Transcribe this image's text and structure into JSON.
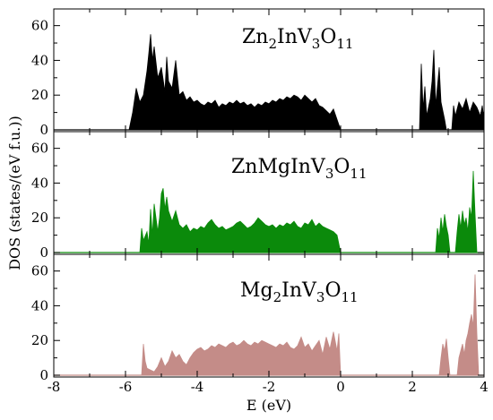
{
  "chart_data": {
    "type": "area",
    "xlabel": "E (eV)",
    "ylabel": "DOS (states/(eV f.u.))",
    "xlim": [
      -8,
      4
    ],
    "ylim": [
      0,
      66
    ],
    "x_ticks": [
      -8,
      -6,
      -4,
      -2,
      0,
      2,
      4
    ],
    "x_tick_labels": [
      "-8",
      "-6",
      "-4",
      "-2",
      "0",
      "2",
      "4"
    ],
    "y_ticks": [
      0,
      20,
      40,
      60
    ],
    "y_tick_labels": [
      "0",
      "20",
      "40",
      "60"
    ],
    "grid": false,
    "panels": [
      {
        "label_parts": [
          {
            "text": "Zn",
            "sub": false
          },
          {
            "text": "2",
            "sub": true
          },
          {
            "text": "InV",
            "sub": false
          },
          {
            "text": "3",
            "sub": true
          },
          {
            "text": "O",
            "sub": false
          },
          {
            "text": "11",
            "sub": true
          }
        ],
        "color": "#000000",
        "series": [
          {
            "x": -5.9,
            "y": 0
          },
          {
            "x": -5.8,
            "y": 10
          },
          {
            "x": -5.7,
            "y": 24
          },
          {
            "x": -5.6,
            "y": 16
          },
          {
            "x": -5.5,
            "y": 20
          },
          {
            "x": -5.4,
            "y": 34
          },
          {
            "x": -5.35,
            "y": 44
          },
          {
            "x": -5.3,
            "y": 55
          },
          {
            "x": -5.25,
            "y": 40
          },
          {
            "x": -5.2,
            "y": 48
          },
          {
            "x": -5.1,
            "y": 30
          },
          {
            "x": -5.0,
            "y": 36
          },
          {
            "x": -4.9,
            "y": 22
          },
          {
            "x": -4.85,
            "y": 42
          },
          {
            "x": -4.8,
            "y": 28
          },
          {
            "x": -4.7,
            "y": 24
          },
          {
            "x": -4.6,
            "y": 40
          },
          {
            "x": -4.5,
            "y": 20
          },
          {
            "x": -4.4,
            "y": 22
          },
          {
            "x": -4.3,
            "y": 17
          },
          {
            "x": -4.2,
            "y": 19
          },
          {
            "x": -4.1,
            "y": 16
          },
          {
            "x": -4.0,
            "y": 17
          },
          {
            "x": -3.9,
            "y": 15
          },
          {
            "x": -3.8,
            "y": 14
          },
          {
            "x": -3.7,
            "y": 16
          },
          {
            "x": -3.6,
            "y": 15
          },
          {
            "x": -3.5,
            "y": 17
          },
          {
            "x": -3.4,
            "y": 13
          },
          {
            "x": -3.3,
            "y": 15
          },
          {
            "x": -3.2,
            "y": 14
          },
          {
            "x": -3.1,
            "y": 16
          },
          {
            "x": -3.0,
            "y": 15
          },
          {
            "x": -2.9,
            "y": 17
          },
          {
            "x": -2.8,
            "y": 15
          },
          {
            "x": -2.7,
            "y": 16
          },
          {
            "x": -2.6,
            "y": 14
          },
          {
            "x": -2.5,
            "y": 15
          },
          {
            "x": -2.4,
            "y": 13
          },
          {
            "x": -2.3,
            "y": 15
          },
          {
            "x": -2.2,
            "y": 14
          },
          {
            "x": -2.1,
            "y": 16
          },
          {
            "x": -2.0,
            "y": 15
          },
          {
            "x": -1.9,
            "y": 17
          },
          {
            "x": -1.8,
            "y": 16
          },
          {
            "x": -1.7,
            "y": 18
          },
          {
            "x": -1.6,
            "y": 17
          },
          {
            "x": -1.5,
            "y": 19
          },
          {
            "x": -1.4,
            "y": 18
          },
          {
            "x": -1.3,
            "y": 20
          },
          {
            "x": -1.2,
            "y": 19
          },
          {
            "x": -1.1,
            "y": 17
          },
          {
            "x": -1.0,
            "y": 20
          },
          {
            "x": -0.9,
            "y": 18
          },
          {
            "x": -0.8,
            "y": 16
          },
          {
            "x": -0.7,
            "y": 18
          },
          {
            "x": -0.6,
            "y": 14
          },
          {
            "x": -0.5,
            "y": 13
          },
          {
            "x": -0.4,
            "y": 11
          },
          {
            "x": -0.3,
            "y": 9
          },
          {
            "x": -0.2,
            "y": 12
          },
          {
            "x": -0.1,
            "y": 6
          },
          {
            "x": 0.0,
            "y": 0
          },
          {
            "x": 2.2,
            "y": 0
          },
          {
            "x": 2.25,
            "y": 38
          },
          {
            "x": 2.3,
            "y": 12
          },
          {
            "x": 2.35,
            "y": 25
          },
          {
            "x": 2.4,
            "y": 8
          },
          {
            "x": 2.5,
            "y": 18
          },
          {
            "x": 2.55,
            "y": 28
          },
          {
            "x": 2.6,
            "y": 46
          },
          {
            "x": 2.65,
            "y": 14
          },
          {
            "x": 2.75,
            "y": 36
          },
          {
            "x": 2.8,
            "y": 16
          },
          {
            "x": 2.9,
            "y": 6
          },
          {
            "x": 2.95,
            "y": 0
          },
          {
            "x": 3.1,
            "y": 0
          },
          {
            "x": 3.15,
            "y": 14
          },
          {
            "x": 3.2,
            "y": 8
          },
          {
            "x": 3.3,
            "y": 16
          },
          {
            "x": 3.4,
            "y": 12
          },
          {
            "x": 3.5,
            "y": 18
          },
          {
            "x": 3.6,
            "y": 10
          },
          {
            "x": 3.7,
            "y": 16
          },
          {
            "x": 3.8,
            "y": 13
          },
          {
            "x": 3.9,
            "y": 8
          },
          {
            "x": 3.95,
            "y": 14
          },
          {
            "x": 4.0,
            "y": 6
          }
        ]
      },
      {
        "label_parts": [
          {
            "text": "ZnMgInV",
            "sub": false
          },
          {
            "text": "3",
            "sub": true
          },
          {
            "text": "O",
            "sub": false
          },
          {
            "text": "11",
            "sub": true
          }
        ],
        "color": "#0b8a0b",
        "series": [
          {
            "x": -5.6,
            "y": 0
          },
          {
            "x": -5.55,
            "y": 14
          },
          {
            "x": -5.5,
            "y": 7
          },
          {
            "x": -5.4,
            "y": 12
          },
          {
            "x": -5.35,
            "y": 5
          },
          {
            "x": -5.3,
            "y": 25
          },
          {
            "x": -5.25,
            "y": 10
          },
          {
            "x": -5.2,
            "y": 28
          },
          {
            "x": -5.1,
            "y": 12
          },
          {
            "x": -5.05,
            "y": 20
          },
          {
            "x": -5.0,
            "y": 34
          },
          {
            "x": -4.95,
            "y": 37
          },
          {
            "x": -4.9,
            "y": 25
          },
          {
            "x": -4.85,
            "y": 32
          },
          {
            "x": -4.8,
            "y": 24
          },
          {
            "x": -4.7,
            "y": 18
          },
          {
            "x": -4.6,
            "y": 24
          },
          {
            "x": -4.5,
            "y": 16
          },
          {
            "x": -4.4,
            "y": 14
          },
          {
            "x": -4.3,
            "y": 16
          },
          {
            "x": -4.2,
            "y": 12
          },
          {
            "x": -4.1,
            "y": 14
          },
          {
            "x": -4.0,
            "y": 13
          },
          {
            "x": -3.9,
            "y": 15
          },
          {
            "x": -3.8,
            "y": 14
          },
          {
            "x": -3.7,
            "y": 17
          },
          {
            "x": -3.6,
            "y": 19
          },
          {
            "x": -3.5,
            "y": 16
          },
          {
            "x": -3.4,
            "y": 14
          },
          {
            "x": -3.3,
            "y": 15
          },
          {
            "x": -3.2,
            "y": 13
          },
          {
            "x": -3.1,
            "y": 14
          },
          {
            "x": -3.0,
            "y": 15
          },
          {
            "x": -2.9,
            "y": 17
          },
          {
            "x": -2.8,
            "y": 18
          },
          {
            "x": -2.7,
            "y": 16
          },
          {
            "x": -2.6,
            "y": 14
          },
          {
            "x": -2.5,
            "y": 15
          },
          {
            "x": -2.4,
            "y": 17
          },
          {
            "x": -2.3,
            "y": 20
          },
          {
            "x": -2.2,
            "y": 18
          },
          {
            "x": -2.1,
            "y": 16
          },
          {
            "x": -2.0,
            "y": 15
          },
          {
            "x": -1.9,
            "y": 16
          },
          {
            "x": -1.8,
            "y": 14
          },
          {
            "x": -1.7,
            "y": 16
          },
          {
            "x": -1.6,
            "y": 15
          },
          {
            "x": -1.5,
            "y": 17
          },
          {
            "x": -1.4,
            "y": 16
          },
          {
            "x": -1.3,
            "y": 18
          },
          {
            "x": -1.2,
            "y": 15
          },
          {
            "x": -1.1,
            "y": 14
          },
          {
            "x": -1.0,
            "y": 17
          },
          {
            "x": -0.9,
            "y": 16
          },
          {
            "x": -0.8,
            "y": 19
          },
          {
            "x": -0.7,
            "y": 15
          },
          {
            "x": -0.6,
            "y": 17
          },
          {
            "x": -0.5,
            "y": 15
          },
          {
            "x": -0.4,
            "y": 14
          },
          {
            "x": -0.3,
            "y": 13
          },
          {
            "x": -0.2,
            "y": 12
          },
          {
            "x": -0.1,
            "y": 10
          },
          {
            "x": 0.0,
            "y": 0
          },
          {
            "x": 2.65,
            "y": 0
          },
          {
            "x": 2.7,
            "y": 14
          },
          {
            "x": 2.75,
            "y": 8
          },
          {
            "x": 2.8,
            "y": 20
          },
          {
            "x": 2.85,
            "y": 12
          },
          {
            "x": 2.9,
            "y": 22
          },
          {
            "x": 2.95,
            "y": 15
          },
          {
            "x": 3.0,
            "y": 10
          },
          {
            "x": 3.05,
            "y": 0
          },
          {
            "x": 3.2,
            "y": 0
          },
          {
            "x": 3.25,
            "y": 12
          },
          {
            "x": 3.3,
            "y": 22
          },
          {
            "x": 3.35,
            "y": 14
          },
          {
            "x": 3.4,
            "y": 24
          },
          {
            "x": 3.45,
            "y": 16
          },
          {
            "x": 3.5,
            "y": 20
          },
          {
            "x": 3.55,
            "y": 12
          },
          {
            "x": 3.6,
            "y": 26
          },
          {
            "x": 3.65,
            "y": 20
          },
          {
            "x": 3.7,
            "y": 47
          },
          {
            "x": 3.75,
            "y": 22
          },
          {
            "x": 3.8,
            "y": 0
          }
        ]
      },
      {
        "label_parts": [
          {
            "text": "Mg",
            "sub": false
          },
          {
            "text": "2",
            "sub": true
          },
          {
            "text": "InV",
            "sub": false
          },
          {
            "text": "3",
            "sub": true
          },
          {
            "text": "O",
            "sub": false
          },
          {
            "text": "11",
            "sub": true
          }
        ],
        "color": "#c48c88",
        "series": [
          {
            "x": -5.55,
            "y": 0
          },
          {
            "x": -5.5,
            "y": 18
          },
          {
            "x": -5.45,
            "y": 8
          },
          {
            "x": -5.4,
            "y": 4
          },
          {
            "x": -5.3,
            "y": 3
          },
          {
            "x": -5.2,
            "y": 2
          },
          {
            "x": -5.1,
            "y": 5
          },
          {
            "x": -5.0,
            "y": 10
          },
          {
            "x": -4.9,
            "y": 5
          },
          {
            "x": -4.8,
            "y": 8
          },
          {
            "x": -4.7,
            "y": 14
          },
          {
            "x": -4.6,
            "y": 10
          },
          {
            "x": -4.5,
            "y": 12
          },
          {
            "x": -4.4,
            "y": 8
          },
          {
            "x": -4.3,
            "y": 6
          },
          {
            "x": -4.2,
            "y": 10
          },
          {
            "x": -4.1,
            "y": 13
          },
          {
            "x": -4.0,
            "y": 15
          },
          {
            "x": -3.9,
            "y": 16
          },
          {
            "x": -3.8,
            "y": 14
          },
          {
            "x": -3.7,
            "y": 15
          },
          {
            "x": -3.6,
            "y": 17
          },
          {
            "x": -3.5,
            "y": 16
          },
          {
            "x": -3.4,
            "y": 18
          },
          {
            "x": -3.3,
            "y": 17
          },
          {
            "x": -3.2,
            "y": 16
          },
          {
            "x": -3.1,
            "y": 18
          },
          {
            "x": -3.0,
            "y": 19
          },
          {
            "x": -2.9,
            "y": 17
          },
          {
            "x": -2.8,
            "y": 18
          },
          {
            "x": -2.7,
            "y": 20
          },
          {
            "x": -2.6,
            "y": 18
          },
          {
            "x": -2.5,
            "y": 17
          },
          {
            "x": -2.4,
            "y": 19
          },
          {
            "x": -2.3,
            "y": 18
          },
          {
            "x": -2.2,
            "y": 20
          },
          {
            "x": -2.1,
            "y": 19
          },
          {
            "x": -2.0,
            "y": 18
          },
          {
            "x": -1.9,
            "y": 17
          },
          {
            "x": -1.8,
            "y": 16
          },
          {
            "x": -1.7,
            "y": 18
          },
          {
            "x": -1.6,
            "y": 17
          },
          {
            "x": -1.5,
            "y": 19
          },
          {
            "x": -1.4,
            "y": 16
          },
          {
            "x": -1.3,
            "y": 15
          },
          {
            "x": -1.2,
            "y": 17
          },
          {
            "x": -1.1,
            "y": 22
          },
          {
            "x": -1.0,
            "y": 16
          },
          {
            "x": -0.9,
            "y": 18
          },
          {
            "x": -0.8,
            "y": 14
          },
          {
            "x": -0.7,
            "y": 17
          },
          {
            "x": -0.6,
            "y": 20
          },
          {
            "x": -0.5,
            "y": 12
          },
          {
            "x": -0.4,
            "y": 22
          },
          {
            "x": -0.3,
            "y": 15
          },
          {
            "x": -0.2,
            "y": 25
          },
          {
            "x": -0.1,
            "y": 14
          },
          {
            "x": -0.05,
            "y": 24
          },
          {
            "x": 0.0,
            "y": 0
          },
          {
            "x": 2.75,
            "y": 0
          },
          {
            "x": 2.8,
            "y": 10
          },
          {
            "x": 2.85,
            "y": 18
          },
          {
            "x": 2.9,
            "y": 14
          },
          {
            "x": 2.95,
            "y": 21
          },
          {
            "x": 3.0,
            "y": 10
          },
          {
            "x": 3.05,
            "y": 0
          },
          {
            "x": 3.25,
            "y": 0
          },
          {
            "x": 3.3,
            "y": 10
          },
          {
            "x": 3.4,
            "y": 18
          },
          {
            "x": 3.45,
            "y": 12
          },
          {
            "x": 3.5,
            "y": 20
          },
          {
            "x": 3.55,
            "y": 24
          },
          {
            "x": 3.6,
            "y": 30
          },
          {
            "x": 3.65,
            "y": 35
          },
          {
            "x": 3.7,
            "y": 28
          },
          {
            "x": 3.75,
            "y": 58
          },
          {
            "x": 3.8,
            "y": 24
          },
          {
            "x": 3.85,
            "y": 0
          }
        ]
      }
    ]
  }
}
